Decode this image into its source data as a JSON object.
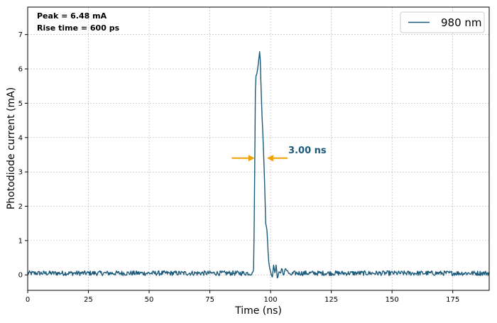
{
  "chart_data": {
    "type": "line",
    "xlabel": "Time (ns)",
    "ylabel": "Photodiode current (mA)",
    "xlim": [
      0,
      190
    ],
    "ylim": [
      -0.45,
      7.8
    ],
    "xticks": [
      0,
      25,
      50,
      75,
      100,
      125,
      150,
      175
    ],
    "yticks": [
      0,
      1,
      2,
      3,
      4,
      5,
      6,
      7
    ],
    "grid": true,
    "legend_position": "top-right",
    "annotations": {
      "peak": "Peak = 6.48 mA",
      "rise_time": "Rise time = 600  ps",
      "fwhm": "3.00 ns"
    },
    "fwhm_marker": {
      "y": 3.4,
      "left_tail_x": 84,
      "left_head_x": 93.5,
      "right_head_x": 98.5,
      "right_tail_x": 107
    },
    "series": [
      {
        "name": "980 nm",
        "color": "#1b5a7a",
        "noise_amplitude": 0.07,
        "x": [
          0,
          92.5,
          93.1,
          93.8,
          94.3,
          94.8,
          95.2,
          95.5,
          95.8,
          96.1,
          96.5,
          97.0,
          97.5,
          98.0,
          98.6,
          99.0,
          99.4,
          99.8,
          100.2,
          100.8,
          101.3,
          101.8,
          102.3,
          102.8,
          103.4,
          104.0,
          104.6,
          105.3,
          106.0,
          107.0,
          108.0,
          110.0,
          190
        ],
        "y": [
          0.05,
          0.05,
          0.2,
          5.75,
          5.85,
          6.1,
          6.3,
          6.48,
          6.2,
          5.4,
          4.6,
          3.8,
          2.8,
          1.5,
          1.3,
          0.6,
          0.3,
          0.1,
          0.05,
          -0.05,
          0.3,
          0.0,
          0.35,
          -0.15,
          0.1,
          0.05,
          0.2,
          -0.05,
          0.2,
          0.1,
          0.0,
          0.05,
          0.05
        ]
      }
    ]
  }
}
